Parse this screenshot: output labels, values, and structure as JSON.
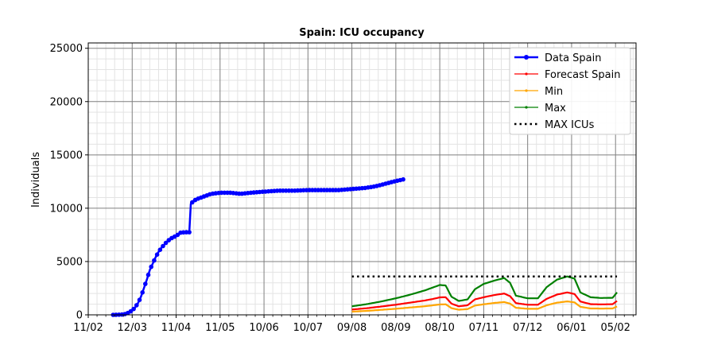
{
  "chart_data": {
    "type": "line",
    "title": "Spain: ICU occupancy",
    "xlabel": "",
    "ylabel": "Individuals",
    "ylim": [
      0,
      25500
    ],
    "xlim": [
      "2020-02-11",
      "2021-02-19"
    ],
    "yticks": [
      0,
      5000,
      10000,
      15000,
      20000,
      25000
    ],
    "xticks": [
      {
        "date": "2020-02-11",
        "label": "11/02"
      },
      {
        "date": "2020-03-12",
        "label": "12/03"
      },
      {
        "date": "2020-04-11",
        "label": "11/04"
      },
      {
        "date": "2020-05-11",
        "label": "11/05"
      },
      {
        "date": "2020-06-10",
        "label": "10/06"
      },
      {
        "date": "2020-07-10",
        "label": "10/07"
      },
      {
        "date": "2020-08-09",
        "label": "09/08"
      },
      {
        "date": "2020-09-08",
        "label": "08/09"
      },
      {
        "date": "2020-10-08",
        "label": "08/10"
      },
      {
        "date": "2020-11-07",
        "label": "07/11"
      },
      {
        "date": "2020-12-07",
        "label": "07/12"
      },
      {
        "date": "2021-01-06",
        "label": "06/01"
      },
      {
        "date": "2021-02-05",
        "label": "05/02"
      }
    ],
    "grid": true,
    "legend_position": "top-right",
    "colors": {
      "data": "#0000ff",
      "forecast": "#ff0000",
      "min": "#ffa500",
      "max": "#008000",
      "max_icus": "#000000"
    },
    "series": [
      {
        "name": "Data Spain",
        "style": "solid-marker",
        "color": "#0000ff",
        "points": [
          [
            "2020-02-28",
            0
          ],
          [
            "2020-03-02",
            10
          ],
          [
            "2020-03-05",
            30
          ],
          [
            "2020-03-08",
            100
          ],
          [
            "2020-03-10",
            250
          ],
          [
            "2020-03-12",
            400
          ],
          [
            "2020-03-14",
            700
          ],
          [
            "2020-03-16",
            1100
          ],
          [
            "2020-03-18",
            1700
          ],
          [
            "2020-03-20",
            2500
          ],
          [
            "2020-03-22",
            3300
          ],
          [
            "2020-03-24",
            4200
          ],
          [
            "2020-03-26",
            4800
          ],
          [
            "2020-03-28",
            5400
          ],
          [
            "2020-03-30",
            5900
          ],
          [
            "2020-04-01",
            6300
          ],
          [
            "2020-04-03",
            6600
          ],
          [
            "2020-04-05",
            6900
          ],
          [
            "2020-04-08",
            7200
          ],
          [
            "2020-04-11",
            7400
          ],
          [
            "2020-04-14",
            7700
          ],
          [
            "2020-04-17",
            7750
          ],
          [
            "2020-04-20",
            7750
          ],
          [
            "2020-04-21",
            10400
          ],
          [
            "2020-04-23",
            10700
          ],
          [
            "2020-04-26",
            10900
          ],
          [
            "2020-04-30",
            11100
          ],
          [
            "2020-05-05",
            11350
          ],
          [
            "2020-05-11",
            11450
          ],
          [
            "2020-05-18",
            11450
          ],
          [
            "2020-05-25",
            11350
          ],
          [
            "2020-06-01",
            11450
          ],
          [
            "2020-06-10",
            11550
          ],
          [
            "2020-06-20",
            11650
          ],
          [
            "2020-07-01",
            11650
          ],
          [
            "2020-07-10",
            11700
          ],
          [
            "2020-07-20",
            11700
          ],
          [
            "2020-07-31",
            11700
          ],
          [
            "2020-08-09",
            11800
          ],
          [
            "2020-08-18",
            11900
          ],
          [
            "2020-08-25",
            12050
          ],
          [
            "2020-09-01",
            12300
          ],
          [
            "2020-09-08",
            12550
          ],
          [
            "2020-09-13",
            12700
          ]
        ]
      },
      {
        "name": "Forecast Spain",
        "style": "line-small-marker",
        "color": "#ff0000",
        "points": [
          [
            "2020-08-09",
            500
          ],
          [
            "2020-08-19",
            620
          ],
          [
            "2020-08-29",
            780
          ],
          [
            "2020-09-08",
            950
          ],
          [
            "2020-09-18",
            1150
          ],
          [
            "2020-09-28",
            1350
          ],
          [
            "2020-10-03",
            1480
          ],
          [
            "2020-10-08",
            1640
          ],
          [
            "2020-10-12",
            1650
          ],
          [
            "2020-10-16",
            1050
          ],
          [
            "2020-10-21",
            800
          ],
          [
            "2020-10-27",
            900
          ],
          [
            "2020-11-01",
            1450
          ],
          [
            "2020-11-07",
            1650
          ],
          [
            "2020-11-14",
            1850
          ],
          [
            "2020-11-21",
            2000
          ],
          [
            "2020-11-25",
            1750
          ],
          [
            "2020-11-29",
            1100
          ],
          [
            "2020-12-07",
            950
          ],
          [
            "2020-12-14",
            950
          ],
          [
            "2020-12-20",
            1500
          ],
          [
            "2020-12-27",
            1900
          ],
          [
            "2021-01-03",
            2100
          ],
          [
            "2021-01-08",
            1950
          ],
          [
            "2021-01-12",
            1250
          ],
          [
            "2021-01-19",
            1000
          ],
          [
            "2021-01-26",
            980
          ],
          [
            "2021-02-03",
            1000
          ],
          [
            "2021-02-06",
            1300
          ]
        ]
      },
      {
        "name": "Min",
        "style": "line-small-marker",
        "color": "#ffa500",
        "points": [
          [
            "2020-08-09",
            300
          ],
          [
            "2020-08-19",
            370
          ],
          [
            "2020-08-29",
            470
          ],
          [
            "2020-09-08",
            570
          ],
          [
            "2020-09-18",
            690
          ],
          [
            "2020-09-28",
            810
          ],
          [
            "2020-10-03",
            890
          ],
          [
            "2020-10-08",
            970
          ],
          [
            "2020-10-12",
            990
          ],
          [
            "2020-10-16",
            630
          ],
          [
            "2020-10-21",
            480
          ],
          [
            "2020-10-27",
            540
          ],
          [
            "2020-11-01",
            870
          ],
          [
            "2020-11-07",
            990
          ],
          [
            "2020-11-14",
            1110
          ],
          [
            "2020-11-21",
            1200
          ],
          [
            "2020-11-25",
            1050
          ],
          [
            "2020-11-29",
            660
          ],
          [
            "2020-12-07",
            570
          ],
          [
            "2020-12-14",
            570
          ],
          [
            "2020-12-20",
            900
          ],
          [
            "2020-12-27",
            1140
          ],
          [
            "2021-01-03",
            1260
          ],
          [
            "2021-01-08",
            1170
          ],
          [
            "2021-01-12",
            750
          ],
          [
            "2021-01-19",
            600
          ],
          [
            "2021-01-26",
            590
          ],
          [
            "2021-02-03",
            600
          ],
          [
            "2021-02-06",
            780
          ]
        ]
      },
      {
        "name": "Max",
        "style": "line-small-marker",
        "color": "#008000",
        "points": [
          [
            "2020-08-09",
            800
          ],
          [
            "2020-08-19",
            1000
          ],
          [
            "2020-08-29",
            1250
          ],
          [
            "2020-09-08",
            1550
          ],
          [
            "2020-09-18",
            1900
          ],
          [
            "2020-09-28",
            2300
          ],
          [
            "2020-10-03",
            2550
          ],
          [
            "2020-10-08",
            2800
          ],
          [
            "2020-10-12",
            2750
          ],
          [
            "2020-10-16",
            1700
          ],
          [
            "2020-10-21",
            1300
          ],
          [
            "2020-10-27",
            1450
          ],
          [
            "2020-11-01",
            2400
          ],
          [
            "2020-11-07",
            2900
          ],
          [
            "2020-11-14",
            3200
          ],
          [
            "2020-11-21",
            3450
          ],
          [
            "2020-11-25",
            3000
          ],
          [
            "2020-11-29",
            1800
          ],
          [
            "2020-12-07",
            1550
          ],
          [
            "2020-12-14",
            1550
          ],
          [
            "2020-12-20",
            2600
          ],
          [
            "2020-12-27",
            3300
          ],
          [
            "2021-01-03",
            3600
          ],
          [
            "2021-01-08",
            3400
          ],
          [
            "2021-01-12",
            2100
          ],
          [
            "2021-01-19",
            1650
          ],
          [
            "2021-01-26",
            1580
          ],
          [
            "2021-02-03",
            1600
          ],
          [
            "2021-02-06",
            2100
          ]
        ]
      },
      {
        "name": "MAX ICUs",
        "style": "dotted",
        "color": "#000000",
        "points": [
          [
            "2020-08-09",
            3600
          ],
          [
            "2021-02-06",
            3600
          ]
        ]
      }
    ]
  }
}
